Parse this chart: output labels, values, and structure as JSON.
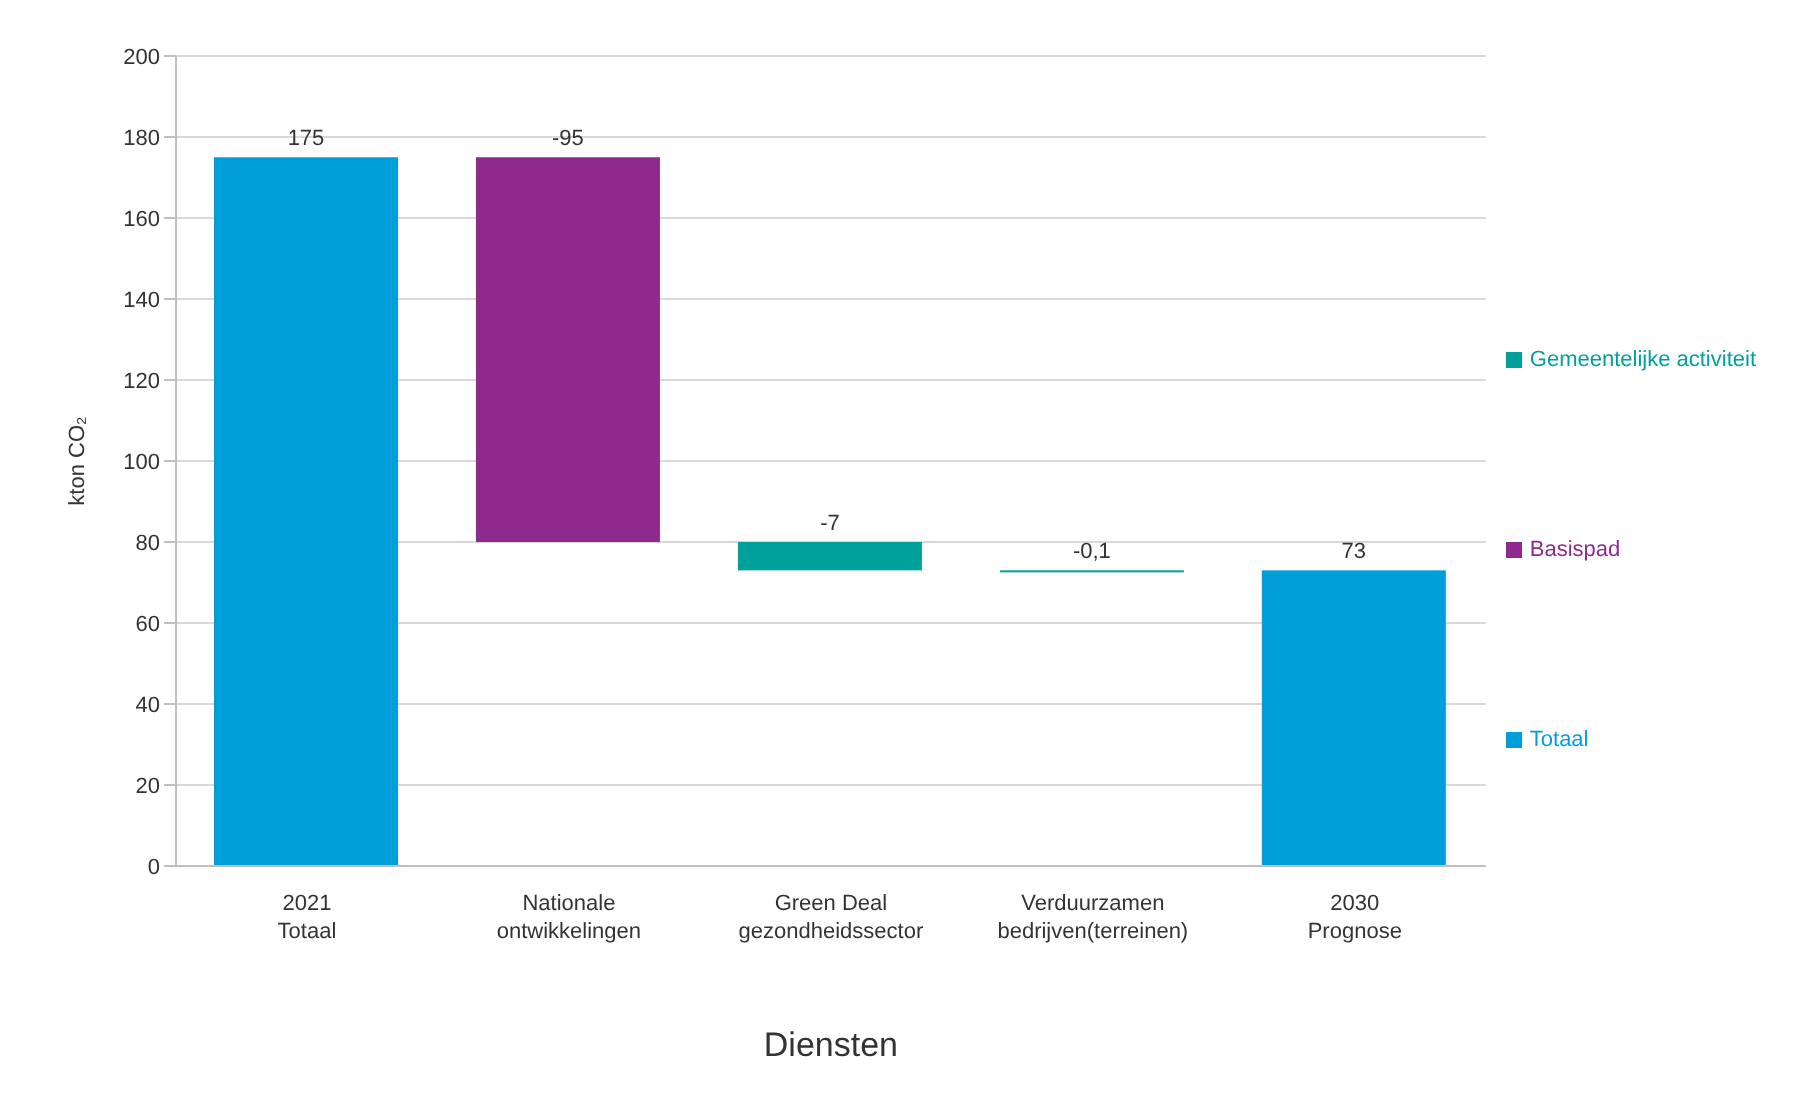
{
  "chart_data": {
    "type": "bar",
    "xlabel": "Diensten",
    "ylabel": "kton CO₂",
    "categories": [
      "2021\nTotaal",
      "Nationale ontwikkelingen",
      "Green Deal gezondheidssector",
      "Verduurzamen\nbedrijven(terreinen)",
      "2030\nPrognose"
    ],
    "series": [
      {
        "name": "Gemeentelijke activiteit",
        "color": "#00a19a",
        "values": [
          null,
          null,
          -7,
          -0.1,
          null
        ],
        "base": [
          null,
          null,
          80,
          73,
          null
        ]
      },
      {
        "name": "Basispad",
        "color": "#8e2a8e",
        "values": [
          null,
          -95,
          null,
          null,
          null
        ],
        "base": [
          null,
          175,
          null,
          null,
          null
        ]
      },
      {
        "name": "Totaal",
        "color": "#009fda",
        "values": [
          175,
          null,
          null,
          null,
          73
        ]
      }
    ],
    "value_labels": [
      "175",
      "-95",
      "-7",
      "-0,1",
      "73"
    ],
    "ylim": [
      0,
      200
    ],
    "yticks": [
      0,
      20,
      40,
      60,
      80,
      100,
      120,
      140,
      160,
      180,
      200
    ],
    "grid": "y",
    "legend": "right"
  }
}
